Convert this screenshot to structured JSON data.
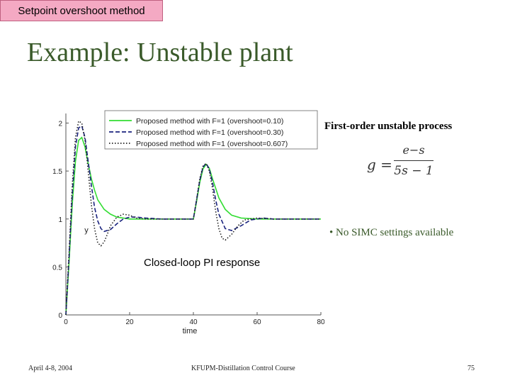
{
  "header_tag": "Setpoint overshoot method",
  "slide_title": "Example: Unstable plant",
  "right_panel": {
    "title": "First-order unstable process",
    "formula": {
      "lhs": "g =",
      "numerator": "e−s",
      "denominator": "5s − 1"
    },
    "bullet": "• No SIMC settings available"
  },
  "chart_annotation": "Closed-loop PI response",
  "footer": {
    "date": "April 4-8, 2004",
    "course": "KFUPM-Distillation Control Course",
    "page": "75"
  },
  "chart_data": {
    "type": "line",
    "title": "",
    "xlabel": "time",
    "ylabel": "y",
    "xlim": [
      0,
      80
    ],
    "ylim": [
      0,
      2.1
    ],
    "xticks": [
      0,
      20,
      40,
      60,
      80
    ],
    "yticks": [
      0,
      0.5,
      1,
      1.5,
      2
    ],
    "xtick_labels": [
      "0",
      "20",
      "40",
      "60",
      "80"
    ],
    "ytick_labels": [
      "0",
      "0.5",
      "1",
      "1.5",
      "2"
    ],
    "grid": false,
    "legend_position": "top-right",
    "colors": [
      "#33dd33",
      "#1a237e",
      "#222222"
    ],
    "series": [
      {
        "name": "Proposed method with F=1 (overshoot=0.10)",
        "style": "solid",
        "x": [
          0,
          1,
          2,
          3,
          4,
          5,
          6,
          7,
          8,
          9,
          10,
          12,
          14,
          16,
          18,
          20,
          25,
          30,
          35,
          39.9,
          40,
          41,
          42,
          43,
          44,
          45,
          46,
          48,
          50,
          52,
          55,
          60,
          65,
          70,
          80
        ],
        "y": [
          0,
          0.55,
          1.15,
          1.6,
          1.82,
          1.85,
          1.75,
          1.58,
          1.42,
          1.3,
          1.2,
          1.1,
          1.05,
          1.02,
          1.01,
          1.0,
          1.0,
          1.0,
          1.0,
          1.0,
          1.0,
          1.18,
          1.38,
          1.52,
          1.57,
          1.53,
          1.42,
          1.22,
          1.1,
          1.04,
          1.01,
          1.0,
          1.0,
          1.0,
          1.0
        ]
      },
      {
        "name": "Proposed method with F=1 (overshoot=0.30)",
        "style": "dashed",
        "x": [
          0,
          1,
          2,
          3,
          4,
          5,
          6,
          7,
          8,
          9,
          10,
          11,
          12,
          14,
          16,
          18,
          20,
          22,
          25,
          30,
          35,
          39.9,
          40,
          41,
          42,
          43,
          44,
          45,
          46,
          47,
          48,
          50,
          52,
          55,
          58,
          62,
          65,
          70,
          80
        ],
        "y": [
          0,
          0.6,
          1.25,
          1.75,
          1.95,
          1.97,
          1.85,
          1.6,
          1.35,
          1.12,
          0.98,
          0.9,
          0.87,
          0.89,
          0.95,
          1.0,
          1.02,
          1.02,
          1.01,
          1.0,
          1.0,
          1.0,
          1.0,
          1.2,
          1.4,
          1.54,
          1.58,
          1.52,
          1.38,
          1.2,
          1.05,
          0.9,
          0.88,
          0.93,
          0.99,
          1.01,
          1.0,
          1.0,
          1.0
        ]
      },
      {
        "name": "Proposed method with F=1 (overshoot=0.607)",
        "style": "dotted",
        "x": [
          0,
          1,
          2,
          3,
          4,
          5,
          6,
          7,
          8,
          9,
          10,
          11,
          12,
          13,
          14,
          16,
          18,
          20,
          22,
          25,
          28,
          32,
          35,
          39.9,
          40,
          41,
          42,
          43,
          44,
          45,
          46,
          47,
          48,
          49,
          50,
          52,
          54,
          56,
          60,
          65,
          70,
          80
        ],
        "y": [
          0,
          0.65,
          1.35,
          1.85,
          2.02,
          2.0,
          1.82,
          1.5,
          1.15,
          0.9,
          0.75,
          0.72,
          0.76,
          0.84,
          0.93,
          1.02,
          1.05,
          1.04,
          1.01,
          1.0,
          1.0,
          1.0,
          1.0,
          1.0,
          1.0,
          1.2,
          1.42,
          1.55,
          1.58,
          1.5,
          1.32,
          1.08,
          0.9,
          0.8,
          0.78,
          0.84,
          0.93,
          0.99,
          1.01,
          1.0,
          1.0,
          1.0
        ]
      }
    ]
  }
}
